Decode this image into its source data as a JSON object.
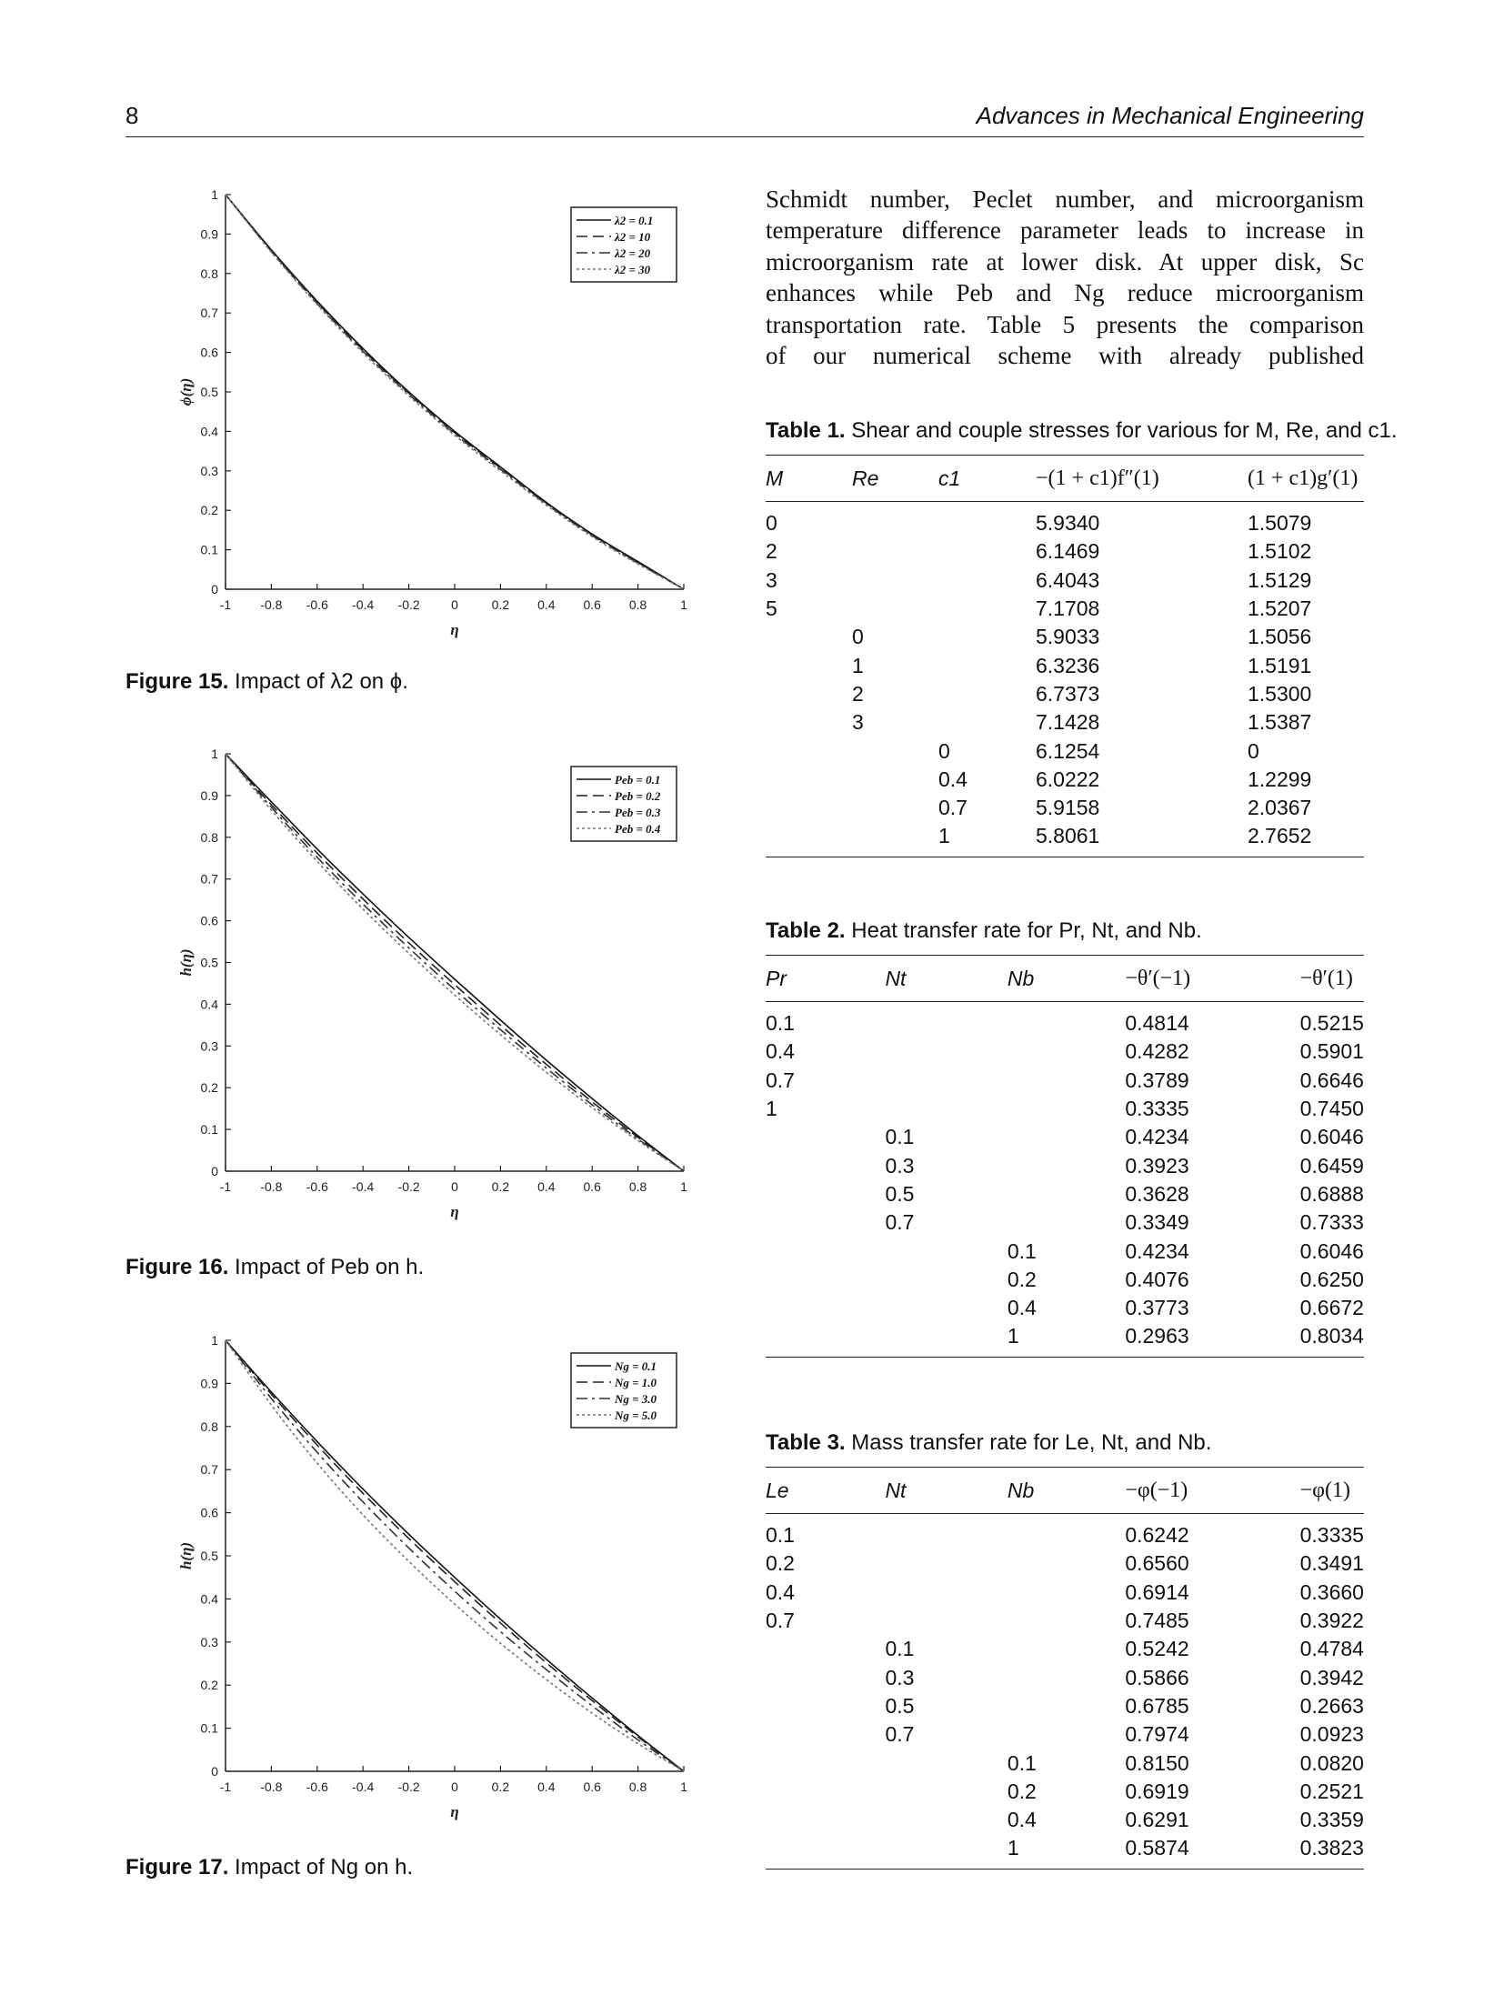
{
  "header": {
    "page_number": "8",
    "journal": "Advances in Mechanical Engineering"
  },
  "paragraph": {
    "lines": [
      "Schmidt number, Peclet number, and microorganism",
      "temperature difference parameter leads to increase in",
      "microorganism rate at lower disk. At upper disk, Sc",
      "enhances while Peb and Ng reduce microorganism",
      "transportation rate. Table 5 presents the comparison",
      "of our numerical scheme with already published"
    ]
  },
  "figures": [
    {
      "label": "Figure 15.",
      "caption": "Impact of λ2 on ϕ.",
      "chart_data": {
        "type": "line",
        "xlabel": "η",
        "ylabel": "ϕ(η)",
        "xlim": [
          -1,
          1
        ],
        "ylim": [
          0,
          1
        ],
        "xticks": [
          "-1",
          "-0.8",
          "-0.6",
          "-0.4",
          "-0.2",
          "0",
          "0.2",
          "0.4",
          "0.6",
          "0.8",
          "1"
        ],
        "yticks": [
          "0",
          "0.1",
          "0.2",
          "0.3",
          "0.4",
          "0.5",
          "0.6",
          "0.7",
          "0.8",
          "0.9",
          "1"
        ],
        "legend": "top-right",
        "x": [
          -1,
          -0.8,
          -0.6,
          -0.4,
          -0.2,
          0,
          0.2,
          0.4,
          0.6,
          0.8,
          1
        ],
        "series": [
          {
            "name": "λ2 = 0.1",
            "values": [
              1,
              0.86,
              0.73,
              0.61,
              0.5,
              0.4,
              0.31,
              0.22,
              0.14,
              0.07,
              0
            ]
          },
          {
            "name": "λ2 = 10",
            "values": [
              1,
              0.858,
              0.727,
              0.606,
              0.497,
              0.397,
              0.307,
              0.218,
              0.138,
              0.068,
              0
            ]
          },
          {
            "name": "λ2 = 20",
            "values": [
              1,
              0.856,
              0.724,
              0.603,
              0.494,
              0.394,
              0.304,
              0.216,
              0.136,
              0.066,
              0
            ]
          },
          {
            "name": "λ2 = 30",
            "values": [
              1,
              0.854,
              0.721,
              0.599,
              0.49,
              0.39,
              0.3,
              0.213,
              0.133,
              0.064,
              0
            ]
          }
        ]
      }
    },
    {
      "label": "Figure 16.",
      "caption": "Impact of Peb on h.",
      "chart_data": {
        "type": "line",
        "xlabel": "η",
        "ylabel": "h(η)",
        "xlim": [
          -1,
          1
        ],
        "ylim": [
          0,
          1
        ],
        "xticks": [
          "-1",
          "-0.8",
          "-0.6",
          "-0.4",
          "-0.2",
          "0",
          "0.2",
          "0.4",
          "0.6",
          "0.8",
          "1"
        ],
        "yticks": [
          "0",
          "0.1",
          "0.2",
          "0.3",
          "0.4",
          "0.5",
          "0.6",
          "0.7",
          "0.8",
          "0.9",
          "1"
        ],
        "legend": "top-right",
        "x": [
          -1,
          -0.8,
          -0.6,
          -0.4,
          -0.2,
          0,
          0.2,
          0.4,
          0.6,
          0.8,
          1
        ],
        "series": [
          {
            "name": "Peb = 0.1",
            "values": [
              1,
              0.885,
              0.772,
              0.664,
              0.56,
              0.46,
              0.362,
              0.266,
              0.174,
              0.085,
              0
            ]
          },
          {
            "name": "Peb = 0.2",
            "values": [
              1,
              0.878,
              0.762,
              0.652,
              0.547,
              0.447,
              0.35,
              0.256,
              0.166,
              0.081,
              0
            ]
          },
          {
            "name": "Peb = 0.3",
            "values": [
              1,
              0.872,
              0.752,
              0.64,
              0.535,
              0.435,
              0.339,
              0.247,
              0.159,
              0.077,
              0
            ]
          },
          {
            "name": "Peb = 0.4",
            "values": [
              1,
              0.865,
              0.742,
              0.628,
              0.522,
              0.422,
              0.327,
              0.237,
              0.152,
              0.073,
              0
            ]
          }
        ]
      }
    },
    {
      "label": "Figure 17.",
      "caption": "Impact of Ng on h.",
      "chart_data": {
        "type": "line",
        "xlabel": "η",
        "ylabel": "h(η)",
        "xlim": [
          -1,
          1
        ],
        "ylim": [
          0,
          1
        ],
        "xticks": [
          "-1",
          "-0.8",
          "-0.6",
          "-0.4",
          "-0.2",
          "0",
          "0.2",
          "0.4",
          "0.6",
          "0.8",
          "1"
        ],
        "yticks": [
          "0",
          "0.1",
          "0.2",
          "0.3",
          "0.4",
          "0.5",
          "0.6",
          "0.7",
          "0.8",
          "0.9",
          "1"
        ],
        "legend": "top-right",
        "x": [
          -1,
          -0.8,
          -0.6,
          -0.4,
          -0.2,
          0,
          0.2,
          0.4,
          0.6,
          0.8,
          1
        ],
        "series": [
          {
            "name": "Ng = 0.1",
            "values": [
              1,
              0.88,
              0.765,
              0.655,
              0.55,
              0.45,
              0.353,
              0.26,
              0.17,
              0.083,
              0
            ]
          },
          {
            "name": "Ng = 1.0",
            "values": [
              1,
              0.875,
              0.757,
              0.645,
              0.54,
              0.44,
              0.344,
              0.252,
              0.164,
              0.08,
              0
            ]
          },
          {
            "name": "Ng = 3.0",
            "values": [
              1,
              0.865,
              0.74,
              0.625,
              0.518,
              0.418,
              0.324,
              0.236,
              0.152,
              0.073,
              0
            ]
          },
          {
            "name": "Ng = 5.0",
            "values": [
              1,
              0.85,
              0.715,
              0.595,
              0.487,
              0.388,
              0.297,
              0.213,
              0.135,
              0.064,
              0
            ]
          }
        ]
      }
    }
  ],
  "tables": [
    {
      "label": "Table 1.",
      "caption": "Shear and couple stresses for various for M, Re, and c1.",
      "columns": [
        "M",
        "Re",
        "c1",
        "−(1 + c1)f″(1)",
        "(1 + c1)g′(1)"
      ],
      "rows": [
        [
          "0",
          "",
          "",
          "5.9340",
          "1.5079"
        ],
        [
          "2",
          "",
          "",
          "6.1469",
          "1.5102"
        ],
        [
          "3",
          "",
          "",
          "6.4043",
          "1.5129"
        ],
        [
          "5",
          "",
          "",
          "7.1708",
          "1.5207"
        ],
        [
          "",
          "0",
          "",
          "5.9033",
          "1.5056"
        ],
        [
          "",
          "1",
          "",
          "6.3236",
          "1.5191"
        ],
        [
          "",
          "2",
          "",
          "6.7373",
          "1.5300"
        ],
        [
          "",
          "3",
          "",
          "7.1428",
          "1.5387"
        ],
        [
          "",
          "",
          "0",
          "6.1254",
          "0"
        ],
        [
          "",
          "",
          "0.4",
          "6.0222",
          "1.2299"
        ],
        [
          "",
          "",
          "0.7",
          "5.9158",
          "2.0367"
        ],
        [
          "",
          "",
          "1",
          "5.8061",
          "2.7652"
        ]
      ]
    },
    {
      "label": "Table 2.",
      "caption": "Heat transfer rate for Pr, Nt, and Nb.",
      "columns": [
        "Pr",
        "Nt",
        "Nb",
        "−θ′(−1)",
        "−θ′(1)"
      ],
      "rows": [
        [
          "0.1",
          "",
          "",
          "0.4814",
          "0.5215"
        ],
        [
          "0.4",
          "",
          "",
          "0.4282",
          "0.5901"
        ],
        [
          "0.7",
          "",
          "",
          "0.3789",
          "0.6646"
        ],
        [
          "1",
          "",
          "",
          "0.3335",
          "0.7450"
        ],
        [
          "",
          "0.1",
          "",
          "0.4234",
          "0.6046"
        ],
        [
          "",
          "0.3",
          "",
          "0.3923",
          "0.6459"
        ],
        [
          "",
          "0.5",
          "",
          "0.3628",
          "0.6888"
        ],
        [
          "",
          "0.7",
          "",
          "0.3349",
          "0.7333"
        ],
        [
          "",
          "",
          "0.1",
          "0.4234",
          "0.6046"
        ],
        [
          "",
          "",
          "0.2",
          "0.4076",
          "0.6250"
        ],
        [
          "",
          "",
          "0.4",
          "0.3773",
          "0.6672"
        ],
        [
          "",
          "",
          "1",
          "0.2963",
          "0.8034"
        ]
      ]
    },
    {
      "label": "Table 3.",
      "caption": "Mass transfer rate for Le, Nt, and Nb.",
      "columns": [
        "Le",
        "Nt",
        "Nb",
        "−φ(−1)",
        "−φ(1)"
      ],
      "rows": [
        [
          "0.1",
          "",
          "",
          "0.6242",
          "0.3335"
        ],
        [
          "0.2",
          "",
          "",
          "0.6560",
          "0.3491"
        ],
        [
          "0.4",
          "",
          "",
          "0.6914",
          "0.3660"
        ],
        [
          "0.7",
          "",
          "",
          "0.7485",
          "0.3922"
        ],
        [
          "",
          "0.1",
          "",
          "0.5242",
          "0.4784"
        ],
        [
          "",
          "0.3",
          "",
          "0.5866",
          "0.3942"
        ],
        [
          "",
          "0.5",
          "",
          "0.6785",
          "0.2663"
        ],
        [
          "",
          "0.7",
          "",
          "0.7974",
          "0.0923"
        ],
        [
          "",
          "",
          "0.1",
          "0.8150",
          "0.0820"
        ],
        [
          "",
          "",
          "0.2",
          "0.6919",
          "0.2521"
        ],
        [
          "",
          "",
          "0.4",
          "0.6291",
          "0.3359"
        ],
        [
          "",
          "",
          "1",
          "0.5874",
          "0.3823"
        ]
      ]
    }
  ]
}
